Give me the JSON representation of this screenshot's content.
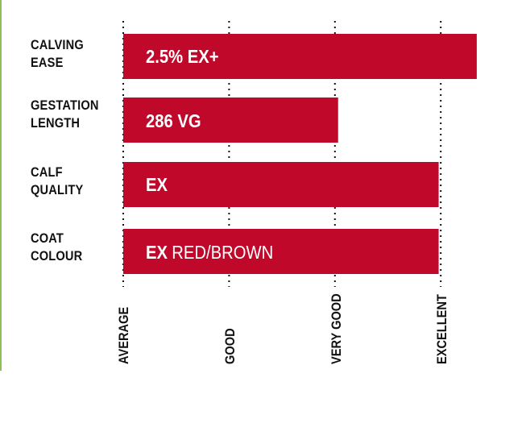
{
  "chart_data": {
    "type": "bar",
    "orientation": "horizontal",
    "categories": [
      [
        "CALVING",
        "EASE"
      ],
      [
        "GESTATION",
        "LENGTH"
      ],
      [
        "CALF",
        "QUALITY"
      ],
      [
        "COAT",
        "COLOUR"
      ]
    ],
    "values": [
      3.34,
      2.03,
      2.98,
      2.98
    ],
    "bar_labels": [
      {
        "main": "2.5% EX+",
        "rest": ""
      },
      {
        "main": "286 VG",
        "rest": ""
      },
      {
        "main": "EX",
        "rest": ""
      },
      {
        "main": "EX",
        "rest": "RED/BROWN"
      }
    ],
    "x_ticks": [
      "AVERAGE",
      "GOOD",
      "VERY GOOD",
      "EXCELLENT"
    ],
    "xlim": [
      0,
      3.34
    ],
    "grid": "vertical dotted lines at each tick",
    "legend": "none",
    "bar_color": "#c0082a",
    "label_color": "#111111"
  }
}
